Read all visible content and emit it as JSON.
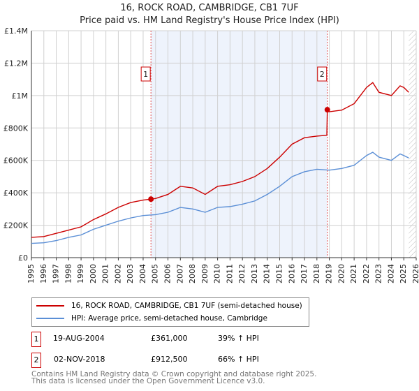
{
  "header": {
    "title": "16, ROCK ROAD, CAMBRIDGE, CB1 7UF",
    "subtitle": "Price paid vs. HM Land Registry's House Price Index (HPI)"
  },
  "chart_data": {
    "type": "line",
    "title": "16, ROCK ROAD, CAMBRIDGE, CB1 7UF",
    "xlim": [
      1995,
      2026
    ],
    "ylim": [
      0,
      1400000
    ],
    "yticks": [
      {
        "v": 0,
        "label": "£0"
      },
      {
        "v": 200000,
        "label": "£200K"
      },
      {
        "v": 400000,
        "label": "£400K"
      },
      {
        "v": 600000,
        "label": "£600K"
      },
      {
        "v": 800000,
        "label": "£800K"
      },
      {
        "v": 1000000,
        "label": "£1M"
      },
      {
        "v": 1200000,
        "label": "£1.2M"
      },
      {
        "v": 1400000,
        "label": "£1.4M"
      }
    ],
    "xticks": [
      "1995",
      "1996",
      "1997",
      "1998",
      "1999",
      "2000",
      "2001",
      "2002",
      "2003",
      "2004",
      "2005",
      "2006",
      "2007",
      "2008",
      "2009",
      "2010",
      "2011",
      "2012",
      "2013",
      "2014",
      "2015",
      "2016",
      "2017",
      "2018",
      "2019",
      "2020",
      "2021",
      "2022",
      "2023",
      "2024",
      "2025",
      "2026"
    ],
    "shaded_range": [
      2004.63,
      2018.84
    ],
    "hatched_from": 2025.4,
    "series": [
      {
        "name": "16, ROCK ROAD, CAMBRIDGE, CB1 7UF (semi-detached house)",
        "color": "#cc0000",
        "x": [
          1995,
          1996,
          1997,
          1998,
          1999,
          2000,
          2001,
          2002,
          2003,
          2004,
          2004.63,
          2005,
          2006,
          2007,
          2008,
          2009,
          2010,
          2011,
          2012,
          2013,
          2014,
          2015,
          2016,
          2017,
          2018,
          2018.8,
          2018.84,
          2019,
          2020,
          2021,
          2022,
          2022.5,
          2023,
          2024,
          2024.7,
          2025,
          2025.4
        ],
        "y": [
          125000,
          130000,
          150000,
          170000,
          190000,
          235000,
          270000,
          310000,
          340000,
          355000,
          361000,
          365000,
          390000,
          440000,
          430000,
          390000,
          440000,
          450000,
          470000,
          500000,
          550000,
          620000,
          700000,
          740000,
          750000,
          755000,
          912500,
          900000,
          910000,
          950000,
          1050000,
          1080000,
          1020000,
          1000000,
          1060000,
          1050000,
          1020000
        ]
      },
      {
        "name": "HPI: Average price, semi-detached house, Cambridge",
        "color": "#5b8fd6",
        "x": [
          1995,
          1996,
          1997,
          1998,
          1999,
          2000,
          2001,
          2002,
          2003,
          2004,
          2005,
          2006,
          2007,
          2008,
          2009,
          2010,
          2011,
          2012,
          2013,
          2014,
          2015,
          2016,
          2017,
          2018,
          2019,
          2020,
          2021,
          2022,
          2022.5,
          2023,
          2024,
          2024.7,
          2025,
          2025.4
        ],
        "y": [
          88000,
          92000,
          105000,
          125000,
          140000,
          175000,
          200000,
          225000,
          245000,
          260000,
          265000,
          280000,
          310000,
          300000,
          280000,
          310000,
          315000,
          330000,
          350000,
          390000,
          440000,
          500000,
          530000,
          545000,
          540000,
          550000,
          570000,
          630000,
          650000,
          620000,
          600000,
          640000,
          630000,
          615000
        ]
      }
    ],
    "markers": [
      {
        "label": "1",
        "x": 2004.63,
        "y": 361000
      },
      {
        "label": "2",
        "x": 2018.84,
        "y": 912500
      }
    ]
  },
  "legend": [
    {
      "label": "16, ROCK ROAD, CAMBRIDGE, CB1 7UF (semi-detached house)",
      "color": "#cc0000"
    },
    {
      "label": "HPI: Average price, semi-detached house, Cambridge",
      "color": "#5b8fd6"
    }
  ],
  "transactions": [
    {
      "num": "1",
      "date": "19-AUG-2004",
      "price": "£361,000",
      "hpi": "39% ↑ HPI"
    },
    {
      "num": "2",
      "date": "02-NOV-2018",
      "price": "£912,500",
      "hpi": "66% ↑ HPI"
    }
  ],
  "footer": {
    "line1": "Contains HM Land Registry data © Crown copyright and database right 2025.",
    "line2": "This data is licensed under the Open Government Licence v3.0."
  }
}
